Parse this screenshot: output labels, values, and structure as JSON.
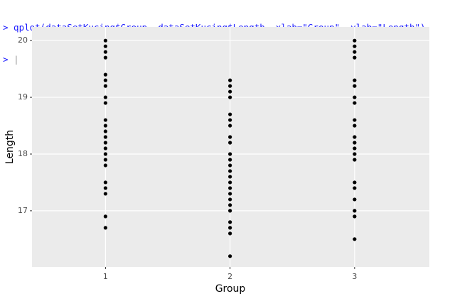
{
  "console": {
    "lines": [
      "> qplot(dataSetKucing$Group, dataSetKucing$Length, xlab=\"Group\", ylab=\"Length\")",
      ">"
    ]
  },
  "chart_data": {
    "type": "scatter",
    "x_label": "Group",
    "y_label": "Length",
    "color": "#000000",
    "x": [
      1,
      1,
      1,
      1,
      1,
      1,
      1,
      1,
      1,
      1,
      1,
      1,
      1,
      1,
      1,
      1,
      1,
      1,
      1,
      1,
      1,
      1,
      1,
      2,
      2,
      2,
      2,
      2,
      2,
      2,
      2,
      2,
      2,
      2,
      2,
      2,
      2,
      2,
      2,
      2,
      2,
      2,
      2,
      2,
      2,
      2,
      2,
      3,
      3,
      3,
      3,
      3,
      3,
      3,
      3,
      3,
      3,
      3,
      3,
      3,
      3,
      3,
      3,
      3,
      3,
      3,
      3,
      3
    ],
    "values": [
      20,
      19.9,
      19.8,
      19.7,
      19.4,
      19.3,
      19.2,
      19.0,
      18.9,
      18.6,
      18.5,
      18.4,
      18.3,
      18.2,
      18.1,
      18.0,
      17.9,
      17.8,
      17.5,
      17.4,
      17.3,
      16.9,
      16.7,
      19.3,
      19.2,
      19.1,
      19.0,
      18.7,
      18.6,
      18.5,
      18.3,
      18.2,
      18.0,
      17.9,
      17.8,
      17.7,
      17.6,
      17.5,
      17.4,
      17.3,
      17.2,
      17.1,
      17.0,
      16.8,
      16.7,
      16.6,
      16.2,
      20,
      19.9,
      19.8,
      19.7,
      19.3,
      19.2,
      19.0,
      18.9,
      18.6,
      18.5,
      18.3,
      18.2,
      18.1,
      18.0,
      17.9,
      17.5,
      17.4,
      17.2,
      17.0,
      16.9,
      16.5
    ],
    "xlim": [
      0.41,
      3.6
    ],
    "ylim": [
      16.01,
      20.24
    ],
    "xticks": [
      1,
      2,
      3
    ],
    "yticks": [
      17,
      18,
      19,
      20
    ],
    "grid": true
  }
}
